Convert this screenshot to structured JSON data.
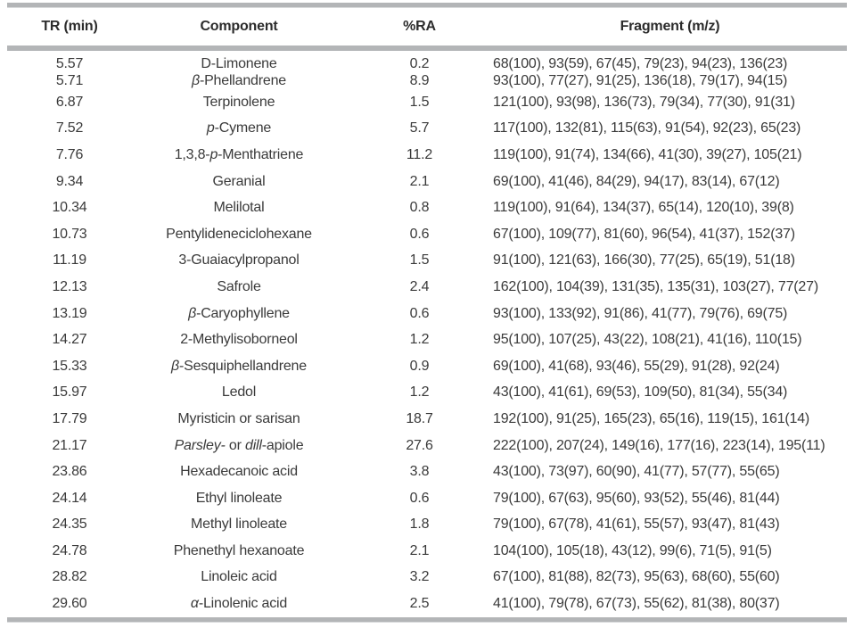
{
  "page": {
    "rule_color": "#b3b5b7",
    "body_text_color": "#3a3a3a",
    "header_text_color": "#2c2c2c"
  },
  "table": {
    "headers": [
      "TR (min)",
      "Component",
      "%RA",
      "Fragment (m/z)"
    ],
    "rows": [
      {
        "tr": "5.57",
        "component": [
          {
            "text": "D-Limonene",
            "italic": false
          }
        ],
        "ra": "0.2",
        "fragments": "68(100), 93(59), 67(45), 79(23), 94(23), 136(23)"
      },
      {
        "tr": "5.71",
        "component": [
          {
            "text": "β",
            "italic": true
          },
          {
            "text": "-Phellandrene",
            "italic": false
          }
        ],
        "ra": "8.9",
        "fragments": "93(100), 77(27), 91(25), 136(18), 79(17), 94(15)"
      },
      {
        "tr": "6.87",
        "component": [
          {
            "text": "Terpinolene",
            "italic": false
          }
        ],
        "ra": "1.5",
        "fragments": "121(100), 93(98), 136(73), 79(34), 77(30), 91(31)"
      },
      {
        "tr": "7.52",
        "component": [
          {
            "text": "p",
            "italic": true
          },
          {
            "text": "-Cymene",
            "italic": false
          }
        ],
        "ra": "5.7",
        "fragments": "117(100), 132(81), 115(63), 91(54), 92(23), 65(23)"
      },
      {
        "tr": "7.76",
        "component": [
          {
            "text": "1,3,8-",
            "italic": false
          },
          {
            "text": "p",
            "italic": true
          },
          {
            "text": "-Menthatriene",
            "italic": false
          }
        ],
        "ra": "11.2",
        "fragments": "119(100), 91(74), 134(66), 41(30), 39(27), 105(21)"
      },
      {
        "tr": "9.34",
        "component": [
          {
            "text": "Geranial",
            "italic": false
          }
        ],
        "ra": "2.1",
        "fragments": "69(100), 41(46), 84(29), 94(17), 83(14), 67(12)"
      },
      {
        "tr": "10.34",
        "component": [
          {
            "text": "Melilotal",
            "italic": false
          }
        ],
        "ra": "0.8",
        "fragments": "119(100), 91(64), 134(37), 65(14), 120(10), 39(8)"
      },
      {
        "tr": "10.73",
        "component": [
          {
            "text": "Pentylideneciclohexane",
            "italic": false
          }
        ],
        "ra": "0.6",
        "fragments": "67(100), 109(77), 81(60), 96(54), 41(37), 152(37)"
      },
      {
        "tr": "11.19",
        "component": [
          {
            "text": "3-Guaiacylpropanol",
            "italic": false
          }
        ],
        "ra": "1.5",
        "fragments": "91(100), 121(63), 166(30), 77(25), 65(19), 51(18)"
      },
      {
        "tr": "12.13",
        "component": [
          {
            "text": "Safrole",
            "italic": false
          }
        ],
        "ra": "2.4",
        "fragments": "162(100), 104(39), 131(35), 135(31), 103(27), 77(27)"
      },
      {
        "tr": "13.19",
        "component": [
          {
            "text": "β",
            "italic": true
          },
          {
            "text": "-Caryophyllene",
            "italic": false
          }
        ],
        "ra": "0.6",
        "fragments": "93(100), 133(92), 91(86), 41(77), 79(76), 69(75)"
      },
      {
        "tr": "14.27",
        "component": [
          {
            "text": "2-Methylisoborneol",
            "italic": false
          }
        ],
        "ra": "1.2",
        "fragments": "95(100), 107(25), 43(22), 108(21), 41(16), 110(15)"
      },
      {
        "tr": "15.33",
        "component": [
          {
            "text": "β",
            "italic": true
          },
          {
            "text": "-Sesquiphellandrene",
            "italic": false
          }
        ],
        "ra": "0.9",
        "fragments": "69(100), 41(68), 93(46), 55(29), 91(28), 92(24)"
      },
      {
        "tr": "15.97",
        "component": [
          {
            "text": "Ledol",
            "italic": false
          }
        ],
        "ra": "1.2",
        "fragments": "43(100), 41(61), 69(53), 109(50), 81(34), 55(34)"
      },
      {
        "tr": "17.79",
        "component": [
          {
            "text": "Myristicin or sarisan",
            "italic": false
          }
        ],
        "ra": "18.7",
        "fragments": "192(100), 91(25), 165(23), 65(16), 119(15), 161(14)"
      },
      {
        "tr": "21.17",
        "component": [
          {
            "text": "Parsley-",
            "italic": true
          },
          {
            "text": " or ",
            "italic": false
          },
          {
            "text": "dill",
            "italic": true
          },
          {
            "text": "-apiole",
            "italic": false
          }
        ],
        "ra": "27.6",
        "fragments": "222(100), 207(24), 149(16), 177(16), 223(14), 195(11)"
      },
      {
        "tr": "23.86",
        "component": [
          {
            "text": "Hexadecanoic acid",
            "italic": false
          }
        ],
        "ra": "3.8",
        "fragments": "43(100), 73(97), 60(90), 41(77), 57(77), 55(65)"
      },
      {
        "tr": "24.14",
        "component": [
          {
            "text": "Ethyl linoleate",
            "italic": false
          }
        ],
        "ra": "0.6",
        "fragments": "79(100), 67(63), 95(60), 93(52), 55(46), 81(44)"
      },
      {
        "tr": "24.35",
        "component": [
          {
            "text": "Methyl linoleate",
            "italic": false
          }
        ],
        "ra": "1.8",
        "fragments": "79(100), 67(78), 41(61), 55(57), 93(47), 81(43)"
      },
      {
        "tr": "24.78",
        "component": [
          {
            "text": "Phenethyl hexanoate",
            "italic": false
          }
        ],
        "ra": "2.1",
        "fragments": "104(100), 105(18), 43(12), 99(6), 71(5), 91(5)"
      },
      {
        "tr": "28.82",
        "component": [
          {
            "text": "Linoleic acid",
            "italic": false
          }
        ],
        "ra": "3.2",
        "fragments": "67(100), 81(88), 82(73), 95(63), 68(60), 55(60)"
      },
      {
        "tr": "29.60",
        "component": [
          {
            "text": "α",
            "italic": true
          },
          {
            "text": "-Linolenic acid",
            "italic": false
          }
        ],
        "ra": "2.5",
        "fragments": "41(100), 79(78), 67(73), 55(62), 81(38), 80(37)"
      }
    ]
  }
}
